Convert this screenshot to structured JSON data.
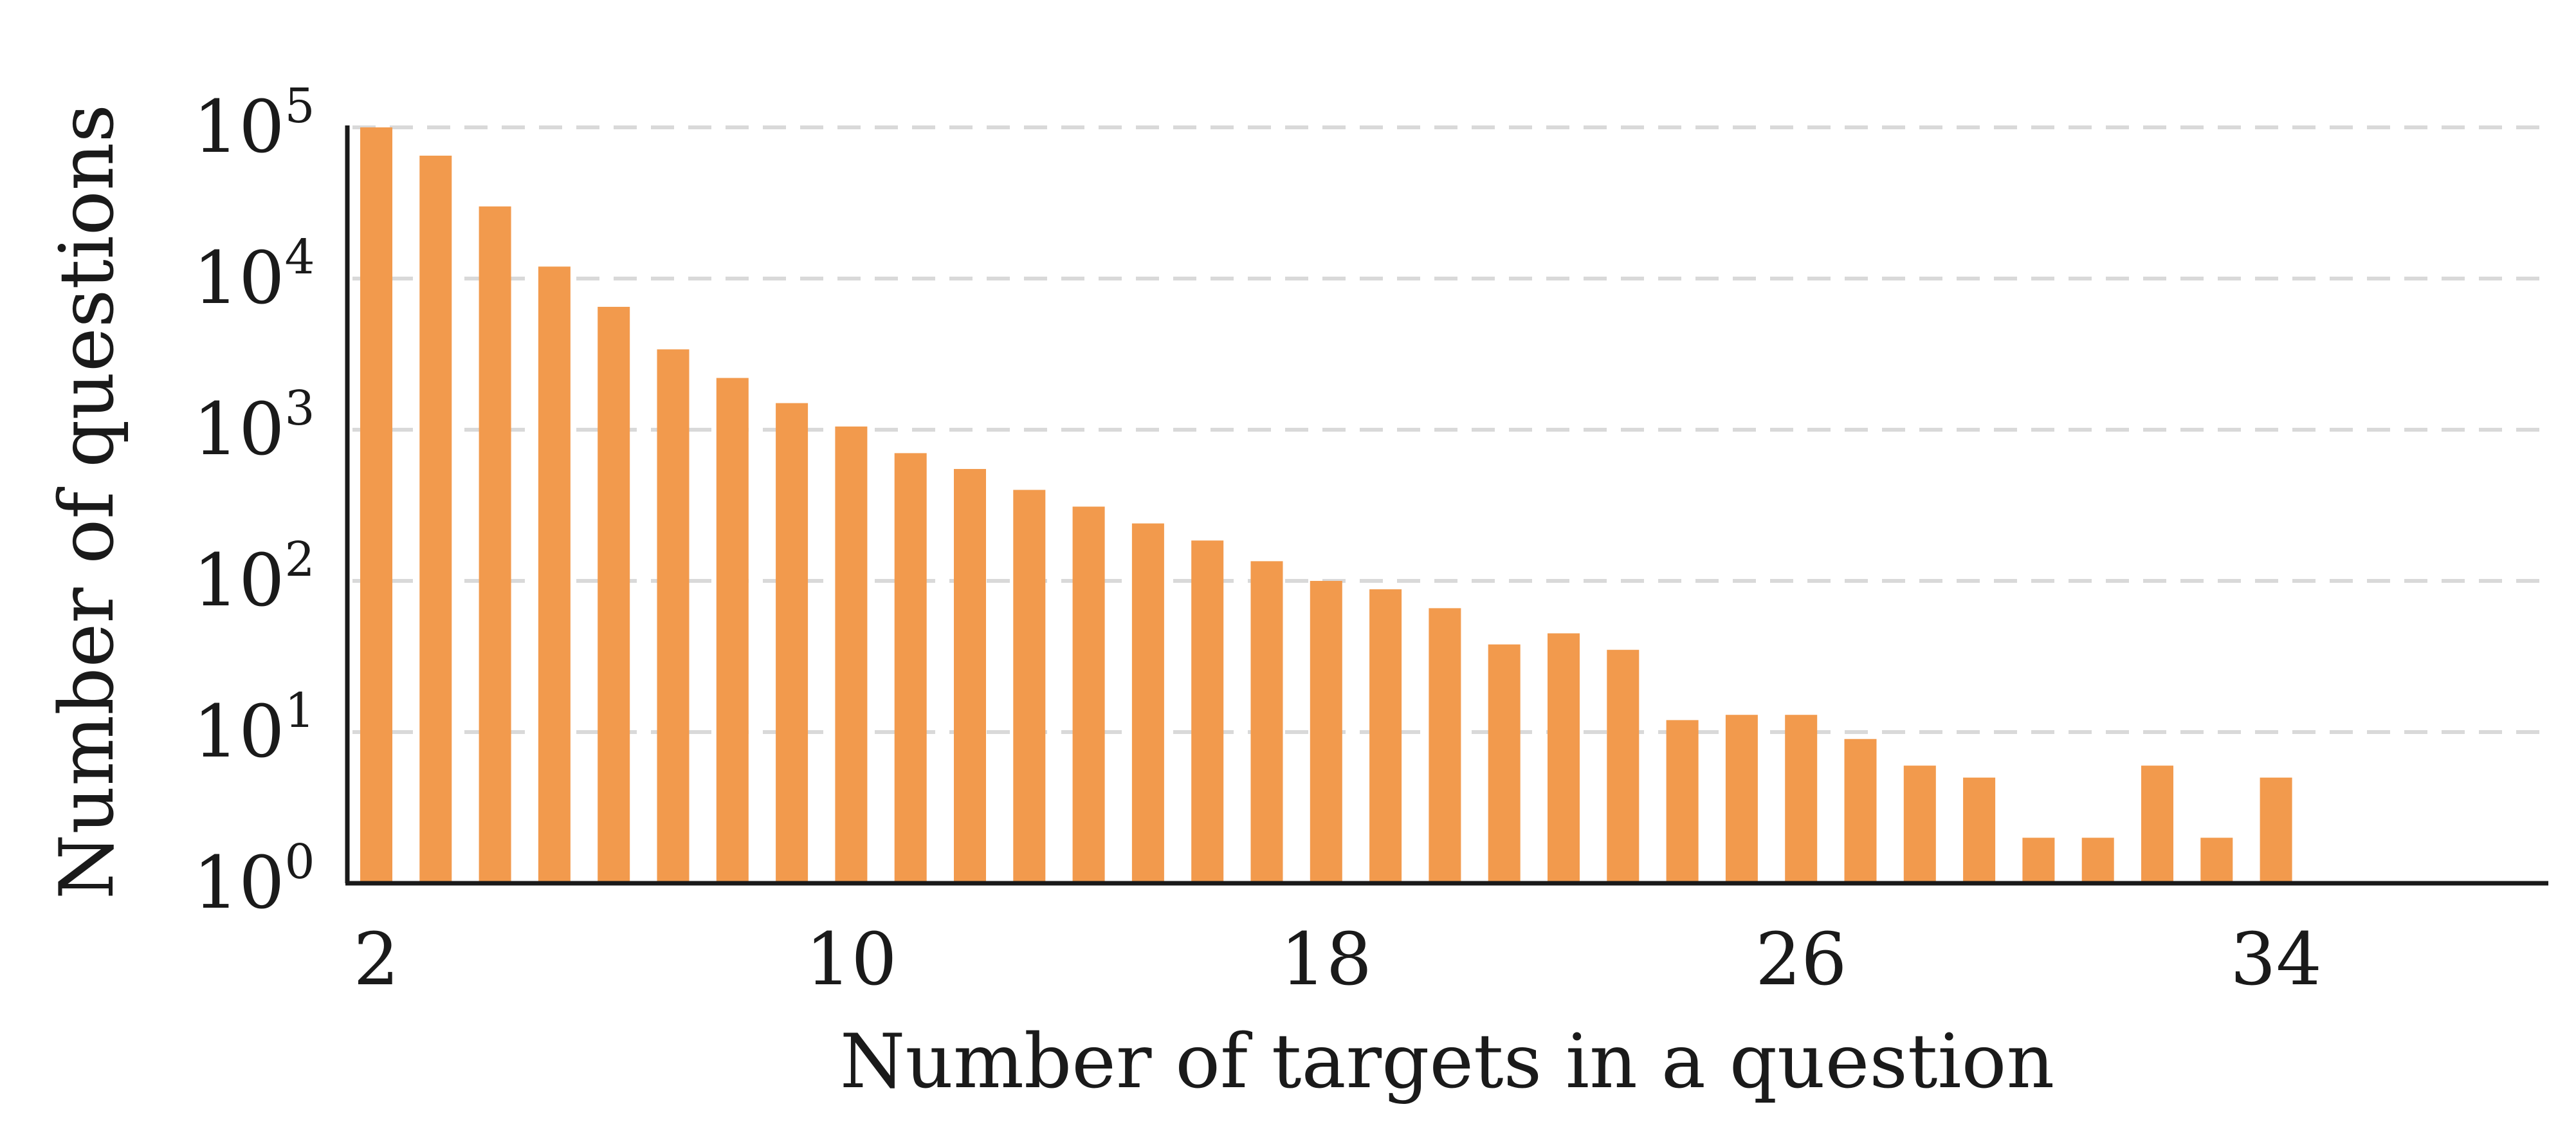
{
  "chart_data": {
    "type": "bar",
    "title": "",
    "xlabel": "Number of targets in a question",
    "ylabel": "Number of questions",
    "yscale": "log",
    "ylim": [
      1,
      100000
    ],
    "grid": "horizontal dashed",
    "bar_color": "#f29a4d",
    "x_tick_labels": [
      "2",
      "10",
      "18",
      "26",
      "34"
    ],
    "y_tick_labels": [
      {
        "base": "10",
        "exp": "0"
      },
      {
        "base": "10",
        "exp": "1"
      },
      {
        "base": "10",
        "exp": "2"
      },
      {
        "base": "10",
        "exp": "3"
      },
      {
        "base": "10",
        "exp": "4"
      },
      {
        "base": "10",
        "exp": "5"
      }
    ],
    "categories": [
      2,
      3,
      4,
      5,
      6,
      7,
      8,
      9,
      10,
      11,
      12,
      13,
      14,
      15,
      16,
      17,
      18,
      19,
      20,
      21,
      22,
      23,
      24,
      25,
      26,
      27,
      28,
      29,
      30,
      31,
      32,
      33,
      34
    ],
    "values": [
      100000,
      65000,
      30000,
      12000,
      6500,
      3400,
      2200,
      1500,
      1050,
      700,
      550,
      400,
      310,
      240,
      185,
      135,
      100,
      88,
      66,
      38,
      45,
      35,
      12,
      13,
      13,
      9,
      6,
      5,
      2,
      2,
      6,
      2,
      5
    ]
  }
}
